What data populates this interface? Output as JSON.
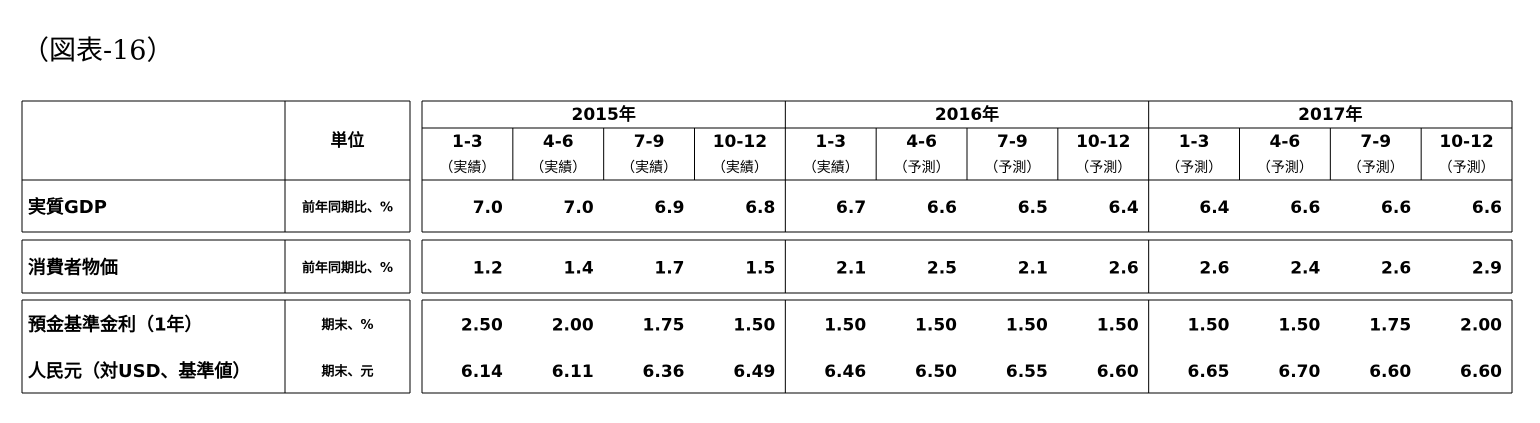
{
  "title": "（図表-16）",
  "table": {
    "unit_header": "単位",
    "years": [
      "2015年",
      "2016年",
      "2017年"
    ],
    "quarters": [
      "1-3",
      "4-6",
      "7-9",
      "10-12",
      "1-3",
      "4-6",
      "7-9",
      "10-12",
      "1-3",
      "4-6",
      "7-9",
      "10-12"
    ],
    "status": [
      "（実績）",
      "（実績）",
      "（実績）",
      "（実績）",
      "（実績）",
      "（予測）",
      "（予測）",
      "（予測）",
      "（予測）",
      "（予測）",
      "（予測）",
      "（予測）"
    ],
    "rows": [
      {
        "label": "実質GDP",
        "unit": "前年同期比、%",
        "values": [
          "7.0",
          "7.0",
          "6.9",
          "6.8",
          "6.7",
          "6.6",
          "6.5",
          "6.4",
          "6.4",
          "6.6",
          "6.6",
          "6.6"
        ]
      },
      {
        "label": "消費者物価",
        "unit": "前年同期比、%",
        "values": [
          "1.2",
          "1.4",
          "1.7",
          "1.5",
          "2.1",
          "2.5",
          "2.1",
          "2.6",
          "2.6",
          "2.4",
          "2.6",
          "2.9"
        ]
      },
      {
        "label": "預金基準金利（1年）",
        "unit": "期末、%",
        "values": [
          "2.50",
          "2.00",
          "1.75",
          "1.50",
          "1.50",
          "1.50",
          "1.50",
          "1.50",
          "1.50",
          "1.50",
          "1.75",
          "2.00"
        ]
      },
      {
        "label": "人民元（対USD、基準値）",
        "unit": "期末、元",
        "values": [
          "6.14",
          "6.11",
          "6.36",
          "6.49",
          "6.46",
          "6.50",
          "6.55",
          "6.60",
          "6.65",
          "6.70",
          "6.60",
          "6.60"
        ]
      }
    ]
  }
}
